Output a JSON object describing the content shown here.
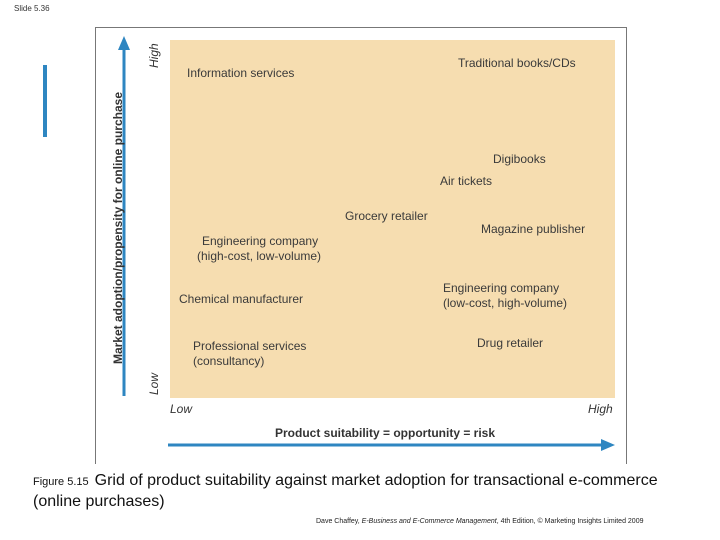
{
  "slide_label": "Slide 5.36",
  "grid": {
    "y_axis_title": "Market adoption/propensity for online purchase",
    "y_high": "High",
    "y_low": "Low",
    "x_axis_title": "Product suitability = opportunity = risk",
    "x_low": "Low",
    "x_high": "High",
    "items": {
      "information_services": "Information services",
      "traditional_books": "Traditional books/CDs",
      "digibooks": "Digibooks",
      "air_tickets": "Air tickets",
      "grocery_retailer": "Grocery retailer",
      "magazine_publisher": "Magazine publisher",
      "engineering_high_cost_1": "Engineering company",
      "engineering_high_cost_2": "(high-cost, low-volume)",
      "chemical_manufacturer": "Chemical manufacturer",
      "engineering_low_cost_1": "Engineering company",
      "engineering_low_cost_2": "(low-cost, high-volume)",
      "professional_services_1": "Professional services",
      "professional_services_2": "(consultancy)",
      "drug_retailer": "Drug retailer"
    }
  },
  "caption": {
    "figure_number": "Figure 5.15",
    "text": "Grid of product suitability against market adoption for transactional e-commerce (online purchases)"
  },
  "credit": {
    "author": "Dave Chaffey,",
    "title": "E-Business and E-Commerce Management",
    "edition": ", 4th Edition, © Marketing Insights Limited 2009"
  },
  "colors": {
    "panel": "#f6ddb0",
    "arrow": "#2e86c1"
  }
}
